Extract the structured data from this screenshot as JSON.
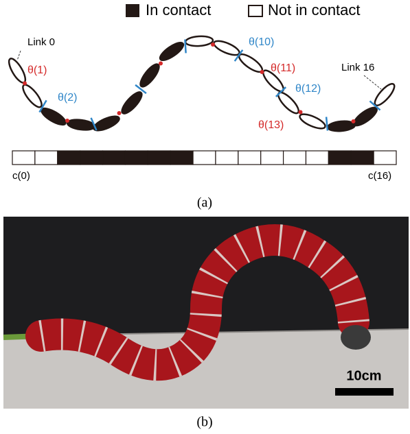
{
  "legend": {
    "in_contact": "In contact",
    "not_in_contact": "Not in contact"
  },
  "links": {
    "first": "Link 0",
    "last": "Link 16"
  },
  "joints": [
    {
      "label": "θ(1)",
      "color": "#d42a2a"
    },
    {
      "label": "θ(2)",
      "color": "#2f86c8"
    },
    {
      "label": "θ(10)",
      "color": "#2f86c8"
    },
    {
      "label": "θ(11)",
      "color": "#d42a2a"
    },
    {
      "label": "θ(12)",
      "color": "#2f86c8"
    },
    {
      "label": "θ(13)",
      "color": "#d42a2a"
    }
  ],
  "contact_bar": {
    "cells": [
      false,
      false,
      true,
      true,
      true,
      true,
      true,
      true,
      false,
      false,
      false,
      false,
      false,
      false,
      true,
      true,
      false
    ],
    "first_label": "c(0)",
    "last_label": "c(16)"
  },
  "captions": {
    "a": "(a)",
    "b": "(b)"
  },
  "photo": {
    "scale_bar": "10cm"
  }
}
